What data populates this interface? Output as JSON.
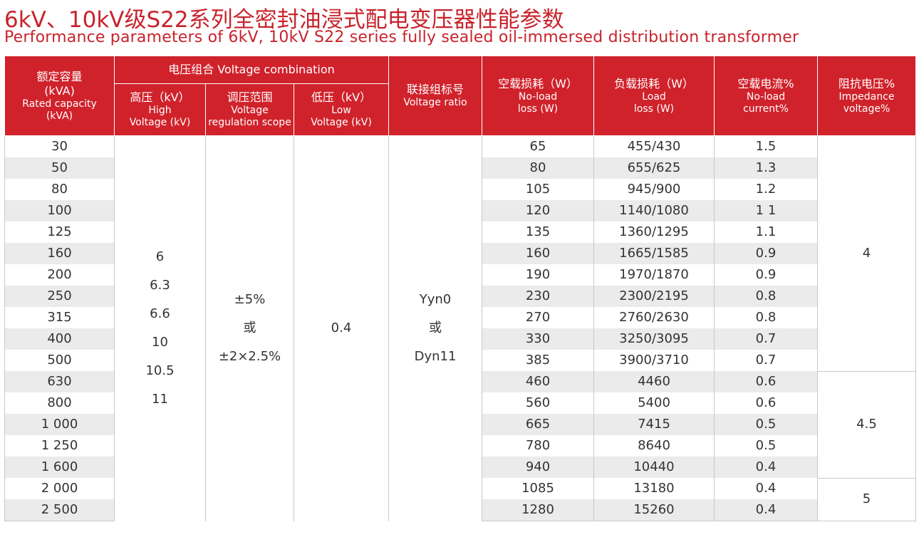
{
  "header": {
    "title": "6kV、10kV级S22系列全密封油浸式配电变压器性能参数",
    "subtitle": "Performance parameters of 6kV, 10kV S22 series fully sealed oil-immersed distribution transformer"
  },
  "table": {
    "columns": {
      "capacity": [
        "额定容量",
        "(kVA)",
        "Rated capacity",
        "(kVA)"
      ],
      "voltage_combination": "电压组合 Voltage combination",
      "high_voltage": [
        "高压（kV）",
        "High",
        "Voltage (kV)"
      ],
      "regulation": [
        "调压范围",
        "Voltage",
        "regulation scope"
      ],
      "low_voltage": [
        "低压（kV）",
        "Low",
        "Voltage (kV)"
      ],
      "connection": [
        "联接组标号",
        "Voltage ratio"
      ],
      "no_load_loss": [
        "空载损耗（W）",
        "No-load",
        "loss (W)"
      ],
      "load_loss": [
        "负载损耗（W）",
        "Load",
        "loss (W)"
      ],
      "no_load_current": [
        "空载电流%",
        "No-load",
        "current%"
      ],
      "impedance": [
        "阻抗电压%",
        "Impedance",
        "voltage%"
      ]
    },
    "rows": [
      [
        "30",
        "65",
        "455/430",
        "1.5"
      ],
      [
        "50",
        "80",
        "655/625",
        "1.3"
      ],
      [
        "80",
        "105",
        "945/900",
        "1.2"
      ],
      [
        "100",
        "120",
        "1140/1080",
        "1 1"
      ],
      [
        "125",
        "135",
        "1360/1295",
        "1.1"
      ],
      [
        "160",
        "160",
        "1665/1585",
        "0.9"
      ],
      [
        "200",
        "190",
        "1970/1870",
        "0.9"
      ],
      [
        "250",
        "230",
        "2300/2195",
        "0.8"
      ],
      [
        "315",
        "270",
        "2760/2630",
        "0.8"
      ],
      [
        "400",
        "330",
        "3250/3095",
        "0.7"
      ],
      [
        "500",
        "385",
        "3900/3710",
        "0.7"
      ],
      [
        "630",
        "460",
        "4460",
        "0.6"
      ],
      [
        "800",
        "560",
        "5400",
        "0.6"
      ],
      [
        "1 000",
        "665",
        "7415",
        "0.5"
      ],
      [
        "1 250",
        "780",
        "8640",
        "0.5"
      ],
      [
        "1 600",
        "940",
        "10440",
        "0.4"
      ],
      [
        "2 000",
        "1085",
        "13180",
        "0.4"
      ],
      [
        "2 500",
        "1280",
        "15260",
        "0.4"
      ]
    ],
    "high_voltage": [
      "6",
      "6.3",
      "6.6",
      "10",
      "10.5",
      "11"
    ],
    "regulation": [
      "±5%",
      "或",
      "±2×2.5%"
    ],
    "low_voltage": "0.4",
    "connection": [
      "Yyn0",
      "或",
      "Dyn11"
    ],
    "impedance": [
      "4",
      "4.5",
      "5"
    ]
  }
}
